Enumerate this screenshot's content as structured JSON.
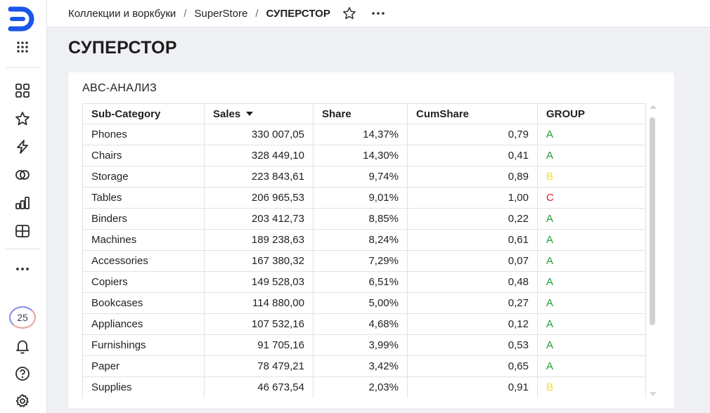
{
  "breadcrumb": {
    "items": [
      "Коллекции и воркбуки",
      "SuperStore"
    ],
    "separator": "/",
    "current": "СУПЕРСТОР"
  },
  "page": {
    "title": "СУПЕРСТОР"
  },
  "sidebar": {
    "items": [
      "logo",
      "apps-grid-icon",
      "collections-icon",
      "favorites-star-icon",
      "lightning-icon",
      "connections-icon",
      "charts-icon",
      "dashboards-icon",
      "more-dots-icon",
      "notifications-bell-icon",
      "help-icon",
      "settings-gear-icon"
    ],
    "badge_value": "25"
  },
  "widget": {
    "title": "ABC-АНАЛИЗ",
    "columns": [
      "Sub-Category",
      "Sales",
      "Share",
      "CumShare",
      "GROUP"
    ],
    "sort_column": "Sales",
    "sort_direction": "desc",
    "rows": [
      {
        "sub_category": "Phones",
        "sales": "330 007,05",
        "share": "14,37%",
        "cumshare": "0,79",
        "group": "A"
      },
      {
        "sub_category": "Chairs",
        "sales": "328 449,10",
        "share": "14,30%",
        "cumshare": "0,41",
        "group": "A"
      },
      {
        "sub_category": "Storage",
        "sales": "223 843,61",
        "share": "9,74%",
        "cumshare": "0,89",
        "group": "B"
      },
      {
        "sub_category": "Tables",
        "sales": "206 965,53",
        "share": "9,01%",
        "cumshare": "1,00",
        "group": "C"
      },
      {
        "sub_category": "Binders",
        "sales": "203 412,73",
        "share": "8,85%",
        "cumshare": "0,22",
        "group": "A"
      },
      {
        "sub_category": "Machines",
        "sales": "189 238,63",
        "share": "8,24%",
        "cumshare": "0,61",
        "group": "A"
      },
      {
        "sub_category": "Accessories",
        "sales": "167 380,32",
        "share": "7,29%",
        "cumshare": "0,07",
        "group": "A"
      },
      {
        "sub_category": "Copiers",
        "sales": "149 528,03",
        "share": "6,51%",
        "cumshare": "0,48",
        "group": "A"
      },
      {
        "sub_category": "Bookcases",
        "sales": "114 880,00",
        "share": "5,00%",
        "cumshare": "0,27",
        "group": "A"
      },
      {
        "sub_category": "Appliances",
        "sales": "107 532,16",
        "share": "4,68%",
        "cumshare": "0,12",
        "group": "A"
      },
      {
        "sub_category": "Furnishings",
        "sales": "91 705,16",
        "share": "3,99%",
        "cumshare": "0,53",
        "group": "A"
      },
      {
        "sub_category": "Paper",
        "sales": "78 479,21",
        "share": "3,42%",
        "cumshare": "0,65",
        "group": "A"
      },
      {
        "sub_category": "Supplies",
        "sales": "46 673,54",
        "share": "2,03%",
        "cumshare": "0,91",
        "group": "B"
      }
    ],
    "group_colors": {
      "A": "#1f9e35",
      "B": "#f2e21b",
      "C": "#e02020"
    }
  },
  "colors": {
    "accent": "#1a56e8",
    "page_bg": "#eef0f3"
  }
}
